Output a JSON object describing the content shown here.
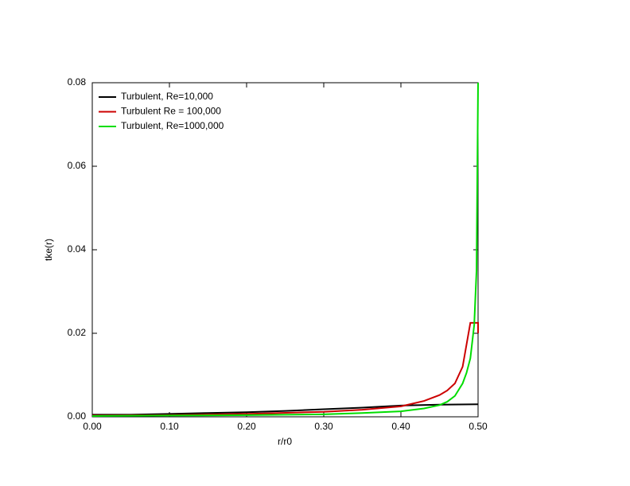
{
  "chart_data": {
    "type": "line",
    "x_label": "r/r0",
    "y_label": "tke(r)",
    "xlim": [
      0,
      0.5
    ],
    "ylim": [
      0,
      0.08
    ],
    "xticks": [
      {
        "value": 0,
        "label": "0.00"
      },
      {
        "value": 0.1,
        "label": "0.10"
      },
      {
        "value": 0.2,
        "label": "0.20"
      },
      {
        "value": 0.3,
        "label": "0.30"
      },
      {
        "value": 0.4,
        "label": "0.40"
      },
      {
        "value": 0.5,
        "label": "0.50"
      }
    ],
    "yticks": [
      {
        "value": 0,
        "label": "0.00"
      },
      0.02,
      0.04,
      0.06,
      0.08
    ],
    "legend": "upper left",
    "series": [
      {
        "name": "Turbulent, Re=10,000",
        "color": "#000000",
        "x": [
          0,
          0.05,
          0.1,
          0.15,
          0.2,
          0.25,
          0.3,
          0.35,
          0.4,
          0.45,
          0.5
        ],
        "values": [
          0.0005,
          0.0005,
          0.0007,
          0.0009,
          0.0011,
          0.0014,
          0.0018,
          0.0022,
          0.0027,
          0.0029,
          0.003
        ]
      },
      {
        "name": "Turbulent Re = 100,000",
        "color": "#cc0000",
        "x": [
          0,
          0.1,
          0.2,
          0.3,
          0.35,
          0.4,
          0.43,
          0.45,
          0.46,
          0.47,
          0.48,
          0.49,
          0.5,
          0.5
        ],
        "values": [
          0.0003,
          0.0004,
          0.0007,
          0.0012,
          0.0017,
          0.0025,
          0.0038,
          0.0052,
          0.0063,
          0.008,
          0.012,
          0.0225,
          0.0225,
          0.02
        ]
      },
      {
        "name": "Turbulent, Re=1000,000",
        "color": "#00dd00",
        "x": [
          0,
          0.1,
          0.2,
          0.3,
          0.35,
          0.4,
          0.43,
          0.45,
          0.46,
          0.47,
          0.48,
          0.485,
          0.49,
          0.495,
          0.498,
          0.5
        ],
        "values": [
          0.0002,
          0.0003,
          0.0004,
          0.0006,
          0.0009,
          0.0013,
          0.002,
          0.0028,
          0.0036,
          0.005,
          0.008,
          0.0105,
          0.014,
          0.022,
          0.035,
          0.08
        ]
      }
    ]
  }
}
